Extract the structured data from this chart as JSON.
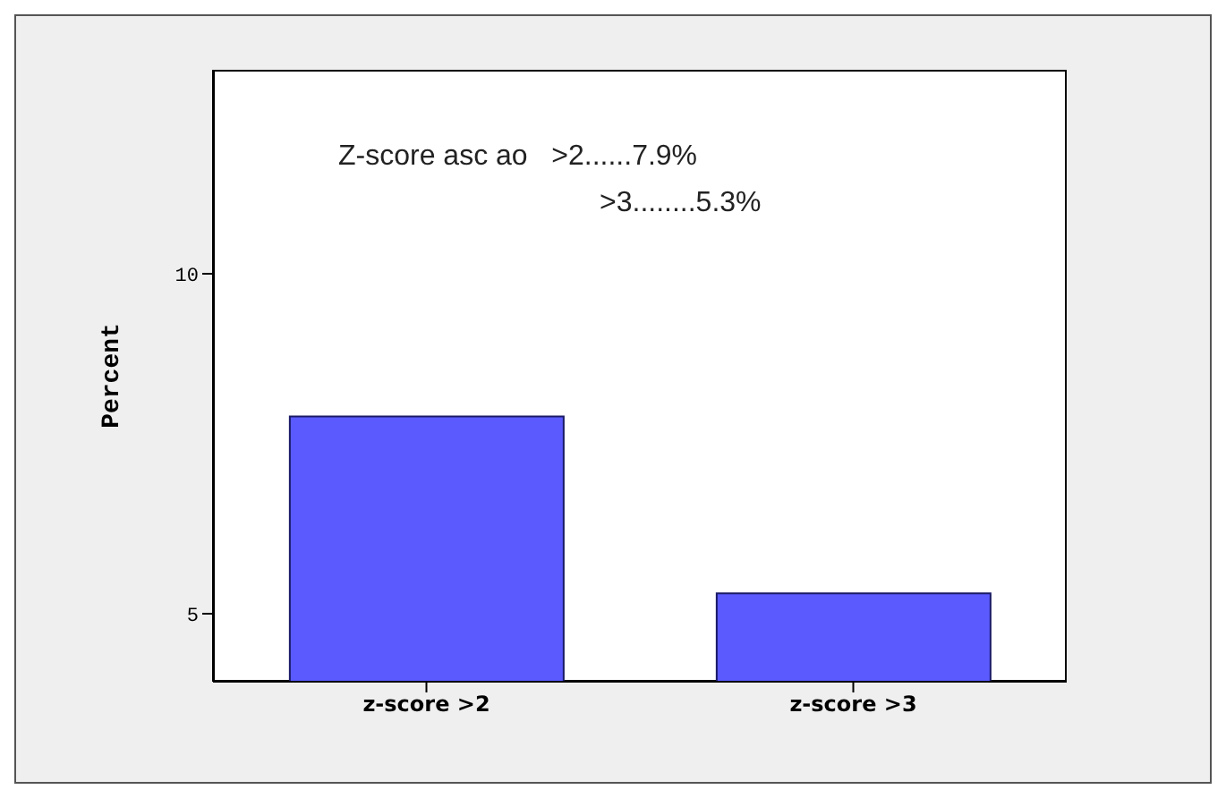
{
  "chart_data": {
    "type": "bar",
    "ylabel": "Percent",
    "categories": [
      "z-score >2",
      "z-score >3"
    ],
    "values": [
      7.9,
      5.3
    ],
    "color": "#5a5aff",
    "ylim": [
      4,
      13
    ],
    "yticks": [
      5,
      10
    ],
    "annotations": [
      "Z-score asc ao   >2......7.9%",
      ">3........5.3%"
    ]
  }
}
